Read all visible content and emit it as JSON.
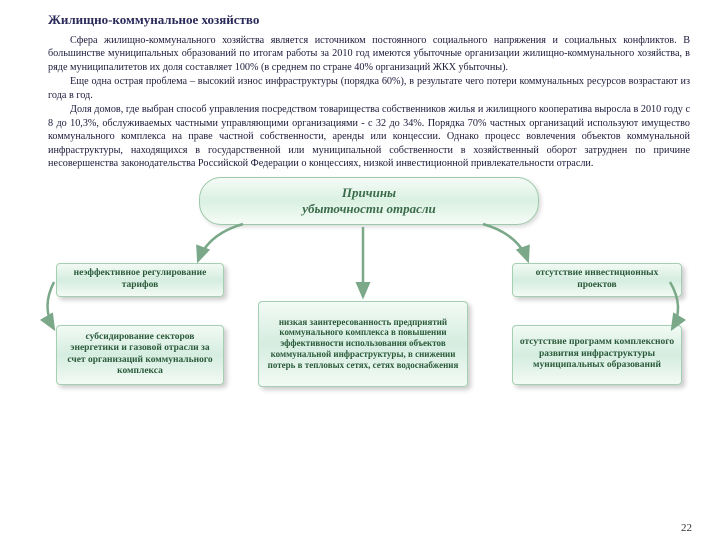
{
  "title": "Жилищно-коммунальное хозяйство",
  "paragraphs": {
    "p1": "Сфера жилищно-коммунального хозяйства является источником постоянного социального напряжения и социальных конфликтов. В большинстве муниципальных образований по итогам работы за 2010 год имеются убыточные организации жилищно-коммунального хозяйства, в ряде муниципалитетов их доля составляет 100% (в среднем по стране 40% организаций ЖКХ убыточны).",
    "p2": "Еще одна острая проблема – высокий износ инфраструктуры (порядка 60%), в результате чего потери коммунальных ресурсов возрастают из года в год.",
    "p3": "Доля домов, где выбран способ управления посредством товарищества собственников жилья и жилищного кооператива выросла в 2010 году с 8 до 10,3%, обслуживаемых частными управляющими организациями - с 32 до 34%. Порядка 70% частных организаций используют имущество коммунального комплекса на праве частной собственности, аренды или концессии. Однако процесс вовлечения объектов коммунальной инфраструктуры, находящихся в государственной или муниципальной собственности в хозяйственный оборот затруднен по причине несовершенства законодательства Российской Федерации о концессиях, низкой инвестиционной привлекательности отрасли."
  },
  "diagram": {
    "type": "flowchart",
    "main": "Причины\nубыточности отрасли",
    "box1": "неэффективное регулирование тарифов",
    "box2": "субсидирование секторов энергетики и газовой отрасли за счет организаций коммунального комплекса",
    "box3": "низкая заинтересованность предприятий коммунального комплекса в повышении эффективности использования объектов коммунальной инфраструктуры, в снижении потерь в тепловых сетях, сетях водоснабжения",
    "box4": "отсутствие инвестиционных проектов",
    "box5": "отсутствие программ комплексного развития инфраструктуры муниципальных образований",
    "arrow_color": "#7aa888",
    "box_bg_top": "#f2faf4",
    "box_bg_mid": "#d5ede0",
    "box_border": "#a5cfb2",
    "text_color": "#2a5a3a"
  },
  "pageNumber": "22"
}
